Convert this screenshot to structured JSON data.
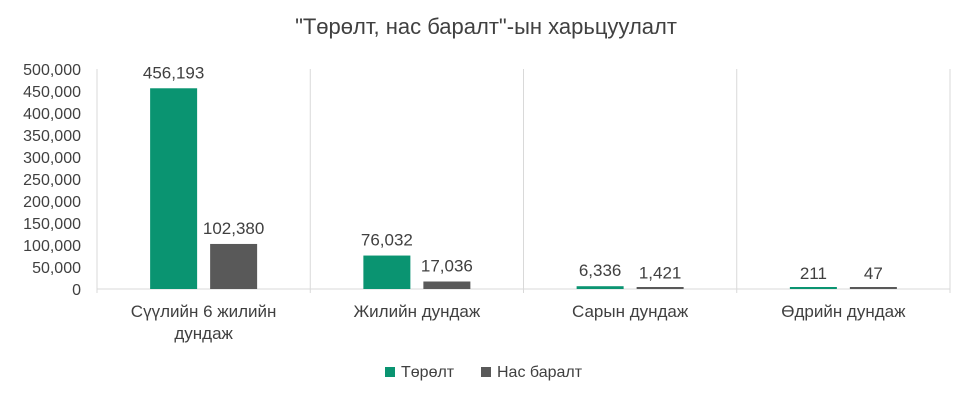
{
  "chart_data": {
    "type": "bar",
    "title": "\"Төрөлт, нас баралт\"-ын харьцуулалт",
    "categories": [
      [
        "Сүүлийн 6 жилийн",
        "дундаж"
      ],
      [
        "Жилийн дундаж"
      ],
      [
        "Сарын дундаж"
      ],
      [
        "Өдрийн дундаж"
      ]
    ],
    "series": [
      {
        "name": "Төрөлт",
        "values": [
          456193,
          76032,
          6336,
          211
        ],
        "labels": [
          "456,193",
          "76,032",
          "6,336",
          "211"
        ],
        "color": "#0a9471"
      },
      {
        "name": "Нас баралт",
        "values": [
          102380,
          17036,
          1421,
          47
        ],
        "labels": [
          "102,380",
          "17,036",
          "1,421",
          "47"
        ],
        "color": "#595959"
      }
    ],
    "ylim": [
      0,
      500000
    ],
    "yticks": [
      0,
      50000,
      100000,
      150000,
      200000,
      250000,
      300000,
      350000,
      400000,
      450000,
      500000
    ],
    "ytick_labels": [
      "0",
      "50,000",
      "100,000",
      "150,000",
      "200,000",
      "250,000",
      "300,000",
      "350,000",
      "400,000",
      "450,000",
      "500,000"
    ],
    "grid": false,
    "category_separators": true,
    "legend_position": "bottom",
    "xlabel": "",
    "ylabel": ""
  }
}
